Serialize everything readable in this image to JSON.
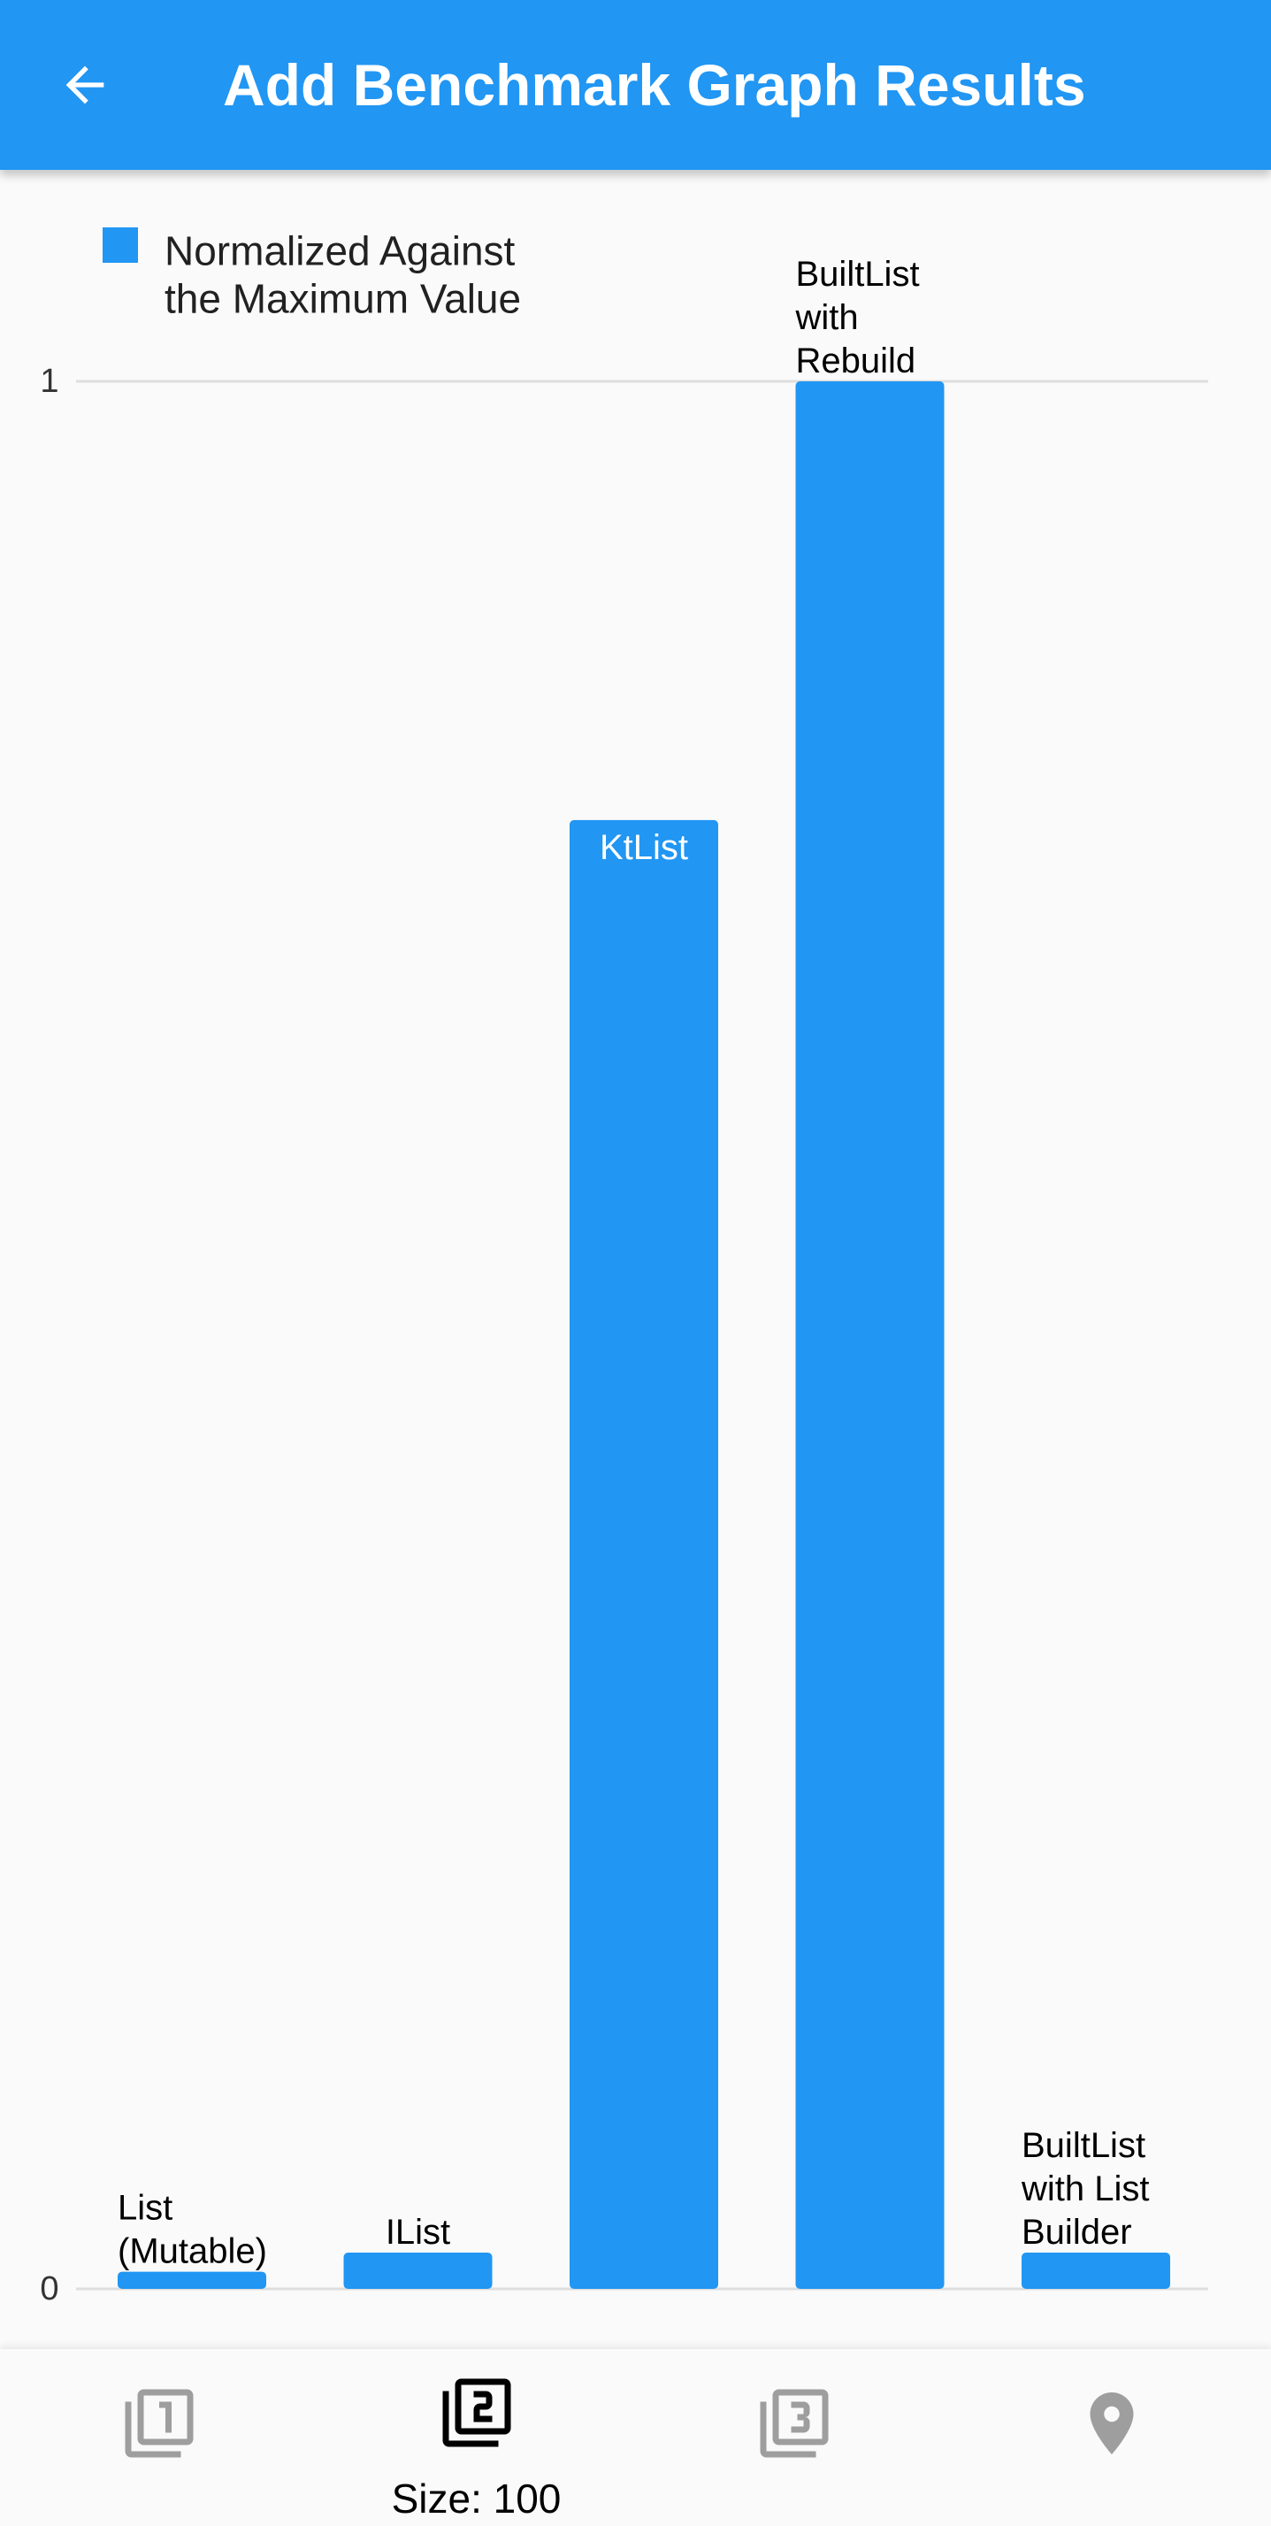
{
  "appbar": {
    "title": "Add Benchmark Graph Results",
    "back_icon": "arrow-left-icon",
    "background": "#2196f3"
  },
  "chart_data": {
    "type": "bar",
    "categories": [
      "List (Mutable)",
      "IList",
      "KtList",
      "BuiltList with Rebuild",
      "BuiltList with List Builder"
    ],
    "series": [
      {
        "name": "Normalized Against the Maximum Value",
        "values": [
          0.009,
          0.019,
          0.77,
          1.0,
          0.019
        ]
      }
    ],
    "ytick_labels": [
      "0",
      "1"
    ],
    "ylim": [
      0,
      1
    ],
    "grid": true,
    "legend": "top-left",
    "bar_color": "#2196f3",
    "category_label_colors": [
      "#000000",
      "#000000",
      "#ffffff",
      "#000000",
      "#000000"
    ]
  },
  "bottom_nav": {
    "items": [
      {
        "icon": "filter-1-icon",
        "label": "",
        "active": false
      },
      {
        "icon": "filter-2-icon",
        "label": "Size: 100",
        "active": true
      },
      {
        "icon": "filter-3-icon",
        "label": "",
        "active": false
      },
      {
        "icon": "location-pin-icon",
        "label": "",
        "active": false
      }
    ],
    "active_color": "#000000",
    "inactive_color": "#9e9e9e"
  }
}
